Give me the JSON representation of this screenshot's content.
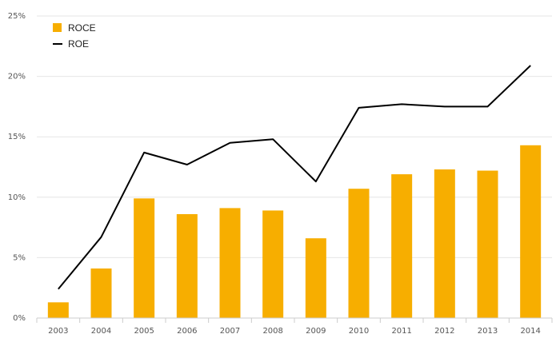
{
  "chart_data": {
    "type": "bar",
    "categories": [
      "2003",
      "2004",
      "2005",
      "2006",
      "2007",
      "2008",
      "2009",
      "2010",
      "2011",
      "2012",
      "2013",
      "2014"
    ],
    "series": [
      {
        "name": "ROCE",
        "type": "bar",
        "color": "#f7ae00",
        "values": [
          1.3,
          4.1,
          9.9,
          8.6,
          9.1,
          8.9,
          6.6,
          10.7,
          11.9,
          12.3,
          12.2,
          14.3
        ]
      },
      {
        "name": "ROE",
        "type": "line",
        "color": "#000000",
        "values": [
          2.4,
          6.7,
          13.7,
          12.7,
          14.5,
          14.8,
          11.3,
          17.4,
          17.7,
          17.5,
          17.5,
          20.9
        ]
      }
    ],
    "y_ticks": [
      "0%",
      "5%",
      "10%",
      "15%",
      "20%",
      "25%"
    ],
    "ylim": [
      0,
      25
    ],
    "grid": true,
    "legend_position": "top-left"
  }
}
